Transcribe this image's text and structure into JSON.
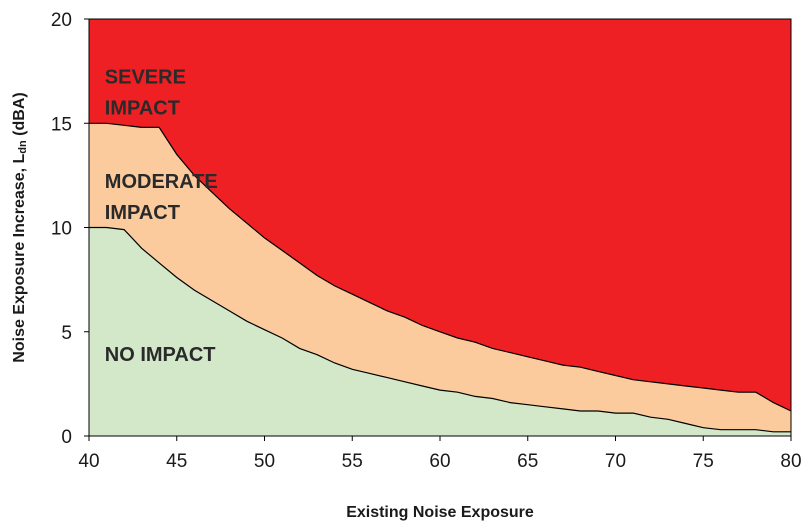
{
  "chart_data": {
    "type": "area",
    "xlabel": "Existing Noise Exposure",
    "ylabel_main": "Noise Exposure Increase, L",
    "ylabel_sub": "dn",
    "ylabel_tail": " (dBA)",
    "xlim": [
      40,
      80
    ],
    "ylim": [
      0,
      20
    ],
    "x_ticks": [
      "40",
      "45",
      "50",
      "55",
      "60",
      "65",
      "70",
      "75",
      "80"
    ],
    "y_ticks": [
      "0",
      "5",
      "10",
      "15",
      "20"
    ],
    "grid": false,
    "zones": [
      {
        "name": "severe",
        "lines": [
          "SEVERE",
          "IMPACT"
        ],
        "label_pos": [
          40.9,
          16.9
        ],
        "color": "#ee2024"
      },
      {
        "name": "moderate",
        "lines": [
          "MODERATE",
          "IMPACT"
        ],
        "label_pos": [
          40.9,
          11.9
        ],
        "color": "#fbcb9d"
      },
      {
        "name": "none",
        "lines": [
          "NO IMPACT"
        ],
        "label_pos": [
          40.9,
          3.6
        ],
        "color": "#d3e7c9"
      }
    ],
    "moderate_threshold": {
      "x": [
        40,
        41,
        42,
        43,
        44,
        45,
        46,
        47,
        48,
        49,
        50,
        51,
        52,
        53,
        54,
        55,
        56,
        57,
        58,
        59,
        60,
        61,
        62,
        63,
        64,
        65,
        66,
        67,
        68,
        69,
        70,
        71,
        72,
        73,
        74,
        75,
        76,
        77,
        78,
        79,
        80
      ],
      "y": [
        10.0,
        10.0,
        9.9,
        9.0,
        8.3,
        7.6,
        7.0,
        6.5,
        6.0,
        5.5,
        5.1,
        4.7,
        4.2,
        3.9,
        3.5,
        3.2,
        3.0,
        2.8,
        2.6,
        2.4,
        2.2,
        2.1,
        1.9,
        1.8,
        1.6,
        1.5,
        1.4,
        1.3,
        1.2,
        1.2,
        1.1,
        1.1,
        0.9,
        0.8,
        0.6,
        0.4,
        0.3,
        0.3,
        0.3,
        0.2,
        0.2
      ]
    },
    "severe_threshold": {
      "x": [
        40,
        41,
        42,
        43,
        44,
        45,
        46,
        47,
        48,
        49,
        50,
        51,
        52,
        53,
        54,
        55,
        56,
        57,
        58,
        59,
        60,
        61,
        62,
        63,
        64,
        65,
        66,
        67,
        68,
        69,
        70,
        71,
        72,
        73,
        74,
        75,
        76,
        77,
        78,
        79,
        80
      ],
      "y": [
        15.0,
        15.0,
        14.9,
        14.8,
        14.8,
        13.5,
        12.5,
        11.7,
        10.9,
        10.2,
        9.5,
        8.9,
        8.3,
        7.7,
        7.2,
        6.8,
        6.4,
        6.0,
        5.7,
        5.3,
        5.0,
        4.7,
        4.5,
        4.2,
        4.0,
        3.8,
        3.6,
        3.4,
        3.3,
        3.1,
        2.9,
        2.7,
        2.6,
        2.5,
        2.4,
        2.3,
        2.2,
        2.1,
        2.1,
        1.6,
        1.2
      ]
    }
  }
}
